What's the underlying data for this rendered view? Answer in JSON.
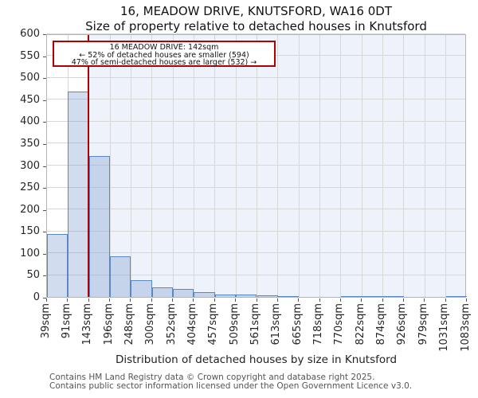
{
  "title": "16, MEADOW DRIVE, KNUTSFORD, WA16 0DT",
  "subtitle": "Size of property relative to detached houses in Knutsford",
  "annotation": {
    "line1": "16 MEADOW DRIVE: 142sqm",
    "line2": "← 52% of detached houses are smaller (594)",
    "line3": "47% of semi-detached houses are larger (532) →"
  },
  "footer": {
    "line1": "Contains HM Land Registry data © Crown copyright and database right 2025.",
    "line2": "Contains public sector information licensed under the Open Government Licence v3.0."
  },
  "chart_data": {
    "type": "bar",
    "title": "16, MEADOW DRIVE, KNUTSFORD, WA16 0DT — Size of property relative to detached houses in Knutsford",
    "xlabel": "Distribution of detached houses by size in Knutsford",
    "ylabel": "Number of detached properties",
    "bin_edges_sqm": [
      39,
      91,
      143,
      196,
      248,
      300,
      352,
      404,
      457,
      509,
      561,
      613,
      665,
      718,
      770,
      822,
      874,
      926,
      979,
      1031,
      1083
    ],
    "x_tick_labels": [
      "39sqm",
      "91sqm",
      "143sqm",
      "196sqm",
      "248sqm",
      "300sqm",
      "352sqm",
      "404sqm",
      "457sqm",
      "509sqm",
      "561sqm",
      "613sqm",
      "665sqm",
      "718sqm",
      "770sqm",
      "822sqm",
      "874sqm",
      "926sqm",
      "979sqm",
      "1031sqm",
      "1083sqm"
    ],
    "values": [
      143,
      467,
      320,
      92,
      39,
      22,
      19,
      10,
      5,
      6,
      3,
      1,
      0,
      0,
      2,
      2,
      2,
      0,
      0,
      2
    ],
    "ylim": [
      0,
      600
    ],
    "y_ticks": [
      0,
      50,
      100,
      150,
      200,
      250,
      300,
      350,
      400,
      450,
      500,
      550,
      600
    ],
    "grid": true,
    "legend": null,
    "marker_value_sqm": 142,
    "colors": {
      "bar_fill": "rgba(113,148,202,0.32)",
      "bar_edge": "#5b88c5",
      "marker_line": "#b20000",
      "annotation_border": "#b20000",
      "shaded_region": "#eef2fa",
      "grid": "#d7d7d7"
    }
  }
}
